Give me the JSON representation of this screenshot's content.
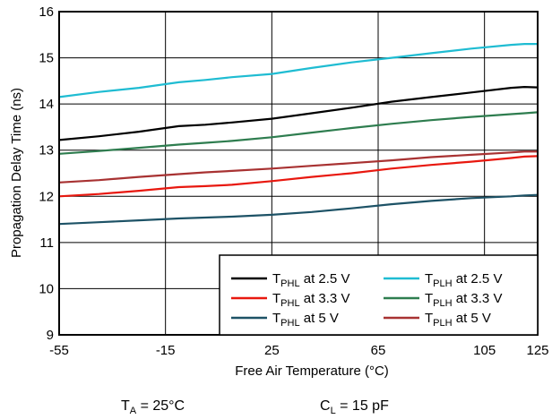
{
  "chart_data": {
    "type": "line",
    "xlabel": "Free Air Temperature (°C)",
    "ylabel": "Propagation Delay Time (ns)",
    "xlim": [
      -55,
      125
    ],
    "ylim": [
      9,
      16
    ],
    "xticks": [
      "-55",
      "-15",
      "25",
      "65",
      "105",
      "125"
    ],
    "xtick_values": [
      -55,
      -15,
      25,
      65,
      105,
      125
    ],
    "yticks": [
      "9",
      "10",
      "11",
      "12",
      "13",
      "14",
      "15",
      "16"
    ],
    "grid": true,
    "legend_position": "bottom-right",
    "x": [
      -55,
      -40,
      -25,
      -10,
      0,
      10,
      25,
      40,
      55,
      70,
      85,
      100,
      115,
      120,
      125
    ],
    "series": [
      {
        "legend": {
          "main": "T",
          "sub": "PHL",
          "suffix": " at 2.5 V"
        },
        "color": "#000000",
        "values": [
          13.22,
          13.3,
          13.4,
          13.52,
          13.55,
          13.6,
          13.68,
          13.8,
          13.92,
          14.05,
          14.15,
          14.25,
          14.35,
          14.37,
          14.36
        ]
      },
      {
        "legend": {
          "main": "T",
          "sub": "PLH",
          "suffix": " at 2.5 V"
        },
        "color": "#1FBCD2",
        "values": [
          14.15,
          14.26,
          14.35,
          14.47,
          14.52,
          14.58,
          14.65,
          14.78,
          14.9,
          15.0,
          15.1,
          15.2,
          15.28,
          15.3,
          15.3
        ]
      },
      {
        "legend": {
          "main": "T",
          "sub": "PHL",
          "suffix": " at 3.3 V"
        },
        "color": "#E8180F",
        "values": [
          12.0,
          12.05,
          12.12,
          12.2,
          12.22,
          12.25,
          12.33,
          12.42,
          12.5,
          12.6,
          12.68,
          12.75,
          12.83,
          12.86,
          12.87
        ]
      },
      {
        "legend": {
          "main": "T",
          "sub": "PLH",
          "suffix": " at 3.3 V"
        },
        "color": "#2E7D4F",
        "values": [
          12.92,
          12.98,
          13.05,
          13.12,
          13.16,
          13.2,
          13.28,
          13.38,
          13.48,
          13.57,
          13.65,
          13.72,
          13.78,
          13.8,
          13.82
        ]
      },
      {
        "legend": {
          "main": "T",
          "sub": "PHL",
          "suffix": " at 5 V"
        },
        "color": "#1D5266",
        "values": [
          11.4,
          11.44,
          11.48,
          11.52,
          11.54,
          11.56,
          11.6,
          11.66,
          11.74,
          11.83,
          11.9,
          11.96,
          12.0,
          12.02,
          12.03
        ]
      },
      {
        "legend": {
          "main": "T",
          "sub": "PLH",
          "suffix": " at 5 V"
        },
        "color": "#A83232",
        "values": [
          12.3,
          12.35,
          12.42,
          12.48,
          12.52,
          12.55,
          12.6,
          12.66,
          12.72,
          12.78,
          12.85,
          12.9,
          12.95,
          12.97,
          12.97
        ]
      }
    ]
  },
  "conditions": {
    "ta": {
      "main": "T",
      "sub": "A",
      "suffix": " = 25°C"
    },
    "cl": {
      "main": "C",
      "sub": "L",
      "suffix": " = 15 pF"
    }
  }
}
